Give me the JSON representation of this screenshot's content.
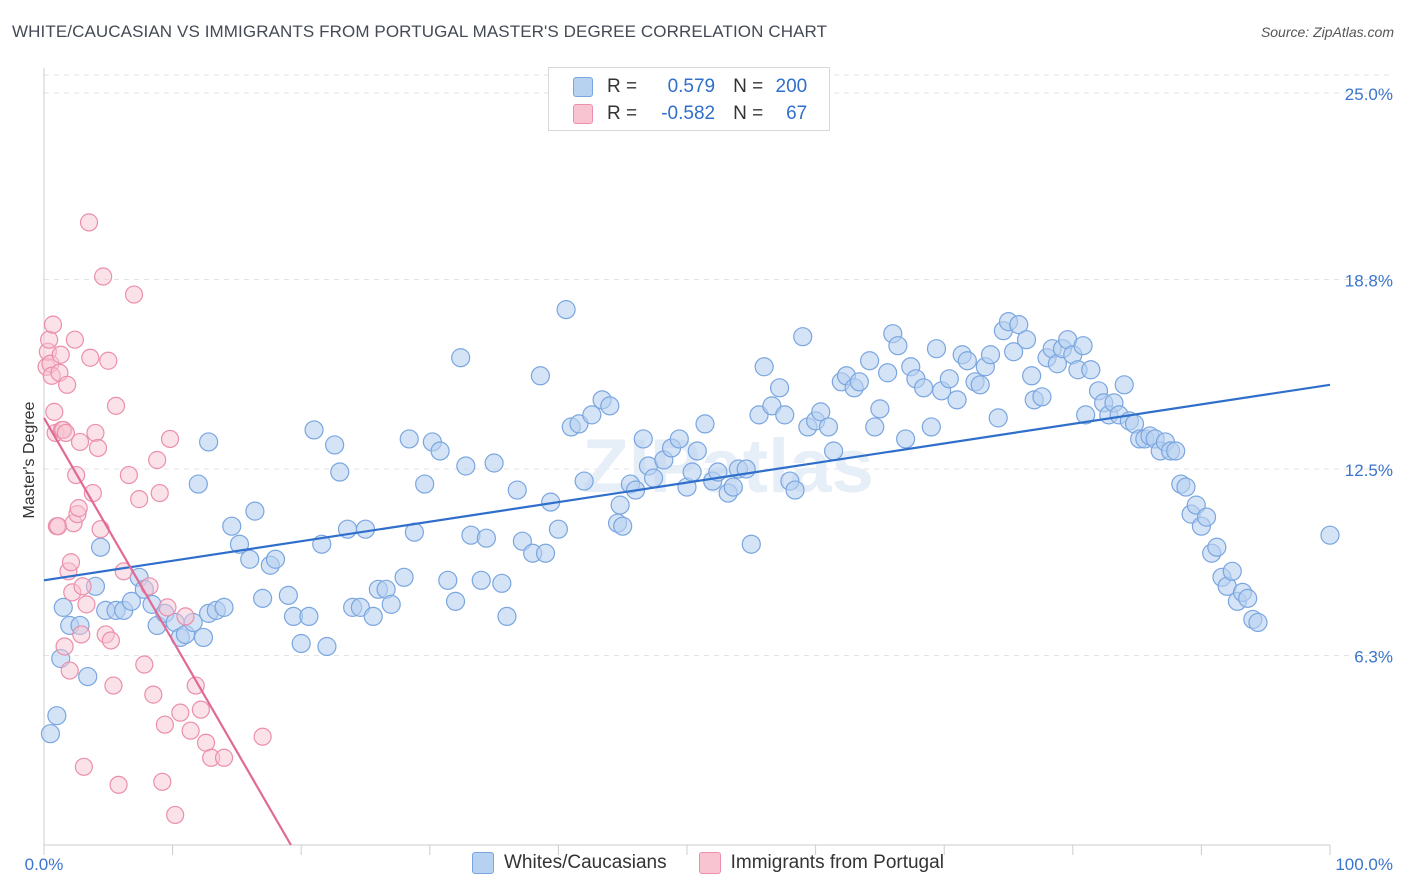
{
  "title": "WHITE/CAUCASIAN VS IMMIGRANTS FROM PORTUGAL MASTER'S DEGREE CORRELATION CHART",
  "source": "Source: ZipAtlas.com",
  "watermark": "ZIPatlas",
  "legend": {
    "r_label": "R =",
    "n_label": "N =",
    "rows": [
      {
        "r": "0.579",
        "n": "200"
      },
      {
        "r": "-0.582",
        "n": "67"
      }
    ]
  },
  "series_labels": [
    "Whites/Caucasians",
    "Immigrants from Portugal"
  ],
  "colors": {
    "blue_fill": "#b7d1f0",
    "blue_stroke": "#7aa6e0",
    "blue_line": "#2f6fcb",
    "pink_fill": "#f8c4d2",
    "pink_stroke": "#eb8fab",
    "pink_line": "#e06a95",
    "axis_label": "#3a74cc",
    "grid": "#e3e3e3"
  },
  "chart_data": {
    "type": "scatter",
    "title": "WHITE/CAUCASIAN VS IMMIGRANTS FROM PORTUGAL MASTER'S DEGREE CORRELATION CHART",
    "xlabel": "",
    "ylabel": "Master's Degree",
    "x_tick_labels": [
      "0.0%",
      "100.0%"
    ],
    "y_tick_labels": [
      "6.3%",
      "12.5%",
      "18.8%",
      "25.0%"
    ],
    "y_ticks": [
      6.3,
      12.5,
      18.8,
      25.0
    ],
    "xlim": [
      0,
      100
    ],
    "ylim": [
      0,
      25.6
    ],
    "grid": true,
    "legend_position": "top-center",
    "series": [
      {
        "name": "Whites/Caucasians",
        "r": 0.579,
        "n": 200,
        "trend": [
          [
            0,
            8.8
          ],
          [
            100,
            15.3
          ]
        ],
        "points": [
          [
            0.5,
            3.7
          ],
          [
            1,
            4.3
          ],
          [
            1.3,
            6.2
          ],
          [
            1.5,
            7.9
          ],
          [
            2,
            7.3
          ],
          [
            2.8,
            7.3
          ],
          [
            3.4,
            5.6
          ],
          [
            4,
            8.6
          ],
          [
            4.4,
            9.9
          ],
          [
            4.8,
            7.8
          ],
          [
            5.6,
            7.8
          ],
          [
            6.2,
            7.8
          ],
          [
            6.8,
            8.1
          ],
          [
            7.4,
            8.9
          ],
          [
            7.8,
            8.5
          ],
          [
            8.4,
            8
          ],
          [
            8.8,
            7.3
          ],
          [
            9.4,
            7.7
          ],
          [
            10.2,
            7.4
          ],
          [
            10.6,
            6.9
          ],
          [
            11,
            7
          ],
          [
            11.6,
            7.4
          ],
          [
            12,
            12
          ],
          [
            12.4,
            6.9
          ],
          [
            12.8,
            13.4
          ],
          [
            12.8,
            7.7
          ],
          [
            13.4,
            7.8
          ],
          [
            14,
            7.9
          ],
          [
            14.6,
            10.6
          ],
          [
            15.2,
            10
          ],
          [
            16,
            9.5
          ],
          [
            16.4,
            11.1
          ],
          [
            17,
            8.2
          ],
          [
            17.6,
            9.3
          ],
          [
            18,
            9.5
          ],
          [
            19,
            8.3
          ],
          [
            19.4,
            7.6
          ],
          [
            20,
            6.7
          ],
          [
            20.6,
            7.6
          ],
          [
            21,
            13.8
          ],
          [
            21.6,
            10
          ],
          [
            22,
            6.6
          ],
          [
            22.6,
            13.3
          ],
          [
            23,
            12.4
          ],
          [
            23.6,
            10.5
          ],
          [
            24,
            7.9
          ],
          [
            24.6,
            7.9
          ],
          [
            25,
            10.5
          ],
          [
            25.6,
            7.6
          ],
          [
            26,
            8.5
          ],
          [
            26.6,
            8.5
          ],
          [
            27,
            8
          ],
          [
            28,
            8.9
          ],
          [
            28.4,
            13.5
          ],
          [
            28.8,
            10.4
          ],
          [
            29.6,
            12
          ],
          [
            30.2,
            13.4
          ],
          [
            30.8,
            13.1
          ],
          [
            31.4,
            8.8
          ],
          [
            32,
            8.1
          ],
          [
            32.4,
            16.2
          ],
          [
            32.8,
            12.6
          ],
          [
            33.2,
            10.3
          ],
          [
            34,
            8.8
          ],
          [
            34.4,
            10.2
          ],
          [
            35,
            12.7
          ],
          [
            35.6,
            8.7
          ],
          [
            36,
            7.6
          ],
          [
            36.8,
            11.8
          ],
          [
            37.2,
            10.1
          ],
          [
            38,
            9.7
          ],
          [
            38.6,
            15.6
          ],
          [
            39,
            9.7
          ],
          [
            39.4,
            11.4
          ],
          [
            40,
            10.5
          ],
          [
            40.6,
            17.8
          ],
          [
            41,
            13.9
          ],
          [
            41.6,
            14
          ],
          [
            42,
            12.1
          ],
          [
            42.6,
            14.3
          ],
          [
            43.4,
            14.8
          ],
          [
            44,
            14.6
          ],
          [
            44.6,
            10.7
          ],
          [
            44.8,
            11.3
          ],
          [
            45,
            10.6
          ],
          [
            45.6,
            12
          ],
          [
            46,
            11.8
          ],
          [
            46.6,
            13.5
          ],
          [
            47,
            12.6
          ],
          [
            47.4,
            12.2
          ],
          [
            48.2,
            12.8
          ],
          [
            48.8,
            13.2
          ],
          [
            49.4,
            13.5
          ],
          [
            50,
            11.9
          ],
          [
            50.4,
            12.4
          ],
          [
            50.8,
            13.1
          ],
          [
            51.4,
            14
          ],
          [
            52,
            12.1
          ],
          [
            52.4,
            12.4
          ],
          [
            53.2,
            11.7
          ],
          [
            53.6,
            11.9
          ],
          [
            54,
            12.5
          ],
          [
            54.6,
            12.5
          ],
          [
            55,
            10
          ],
          [
            55.6,
            14.3
          ],
          [
            56,
            15.9
          ],
          [
            56.6,
            14.6
          ],
          [
            57.2,
            15.2
          ],
          [
            57.6,
            14.3
          ],
          [
            58,
            12.1
          ],
          [
            58.4,
            11.8
          ],
          [
            59,
            16.9
          ],
          [
            59.4,
            13.9
          ],
          [
            60,
            14.1
          ],
          [
            60.4,
            14.4
          ],
          [
            61,
            13.9
          ],
          [
            61.4,
            13.1
          ],
          [
            62,
            15.4
          ],
          [
            62.4,
            15.6
          ],
          [
            63,
            15.2
          ],
          [
            63.4,
            15.4
          ],
          [
            64.2,
            16.1
          ],
          [
            64.6,
            13.9
          ],
          [
            65,
            14.5
          ],
          [
            65.6,
            15.7
          ],
          [
            66,
            17
          ],
          [
            66.4,
            16.6
          ],
          [
            67,
            13.5
          ],
          [
            67.4,
            15.9
          ],
          [
            67.8,
            15.5
          ],
          [
            68.4,
            15.2
          ],
          [
            69,
            13.9
          ],
          [
            69.4,
            16.5
          ],
          [
            69.8,
            15.1
          ],
          [
            70.4,
            15.5
          ],
          [
            71,
            14.8
          ],
          [
            71.4,
            16.3
          ],
          [
            71.8,
            16.1
          ],
          [
            72.4,
            15.4
          ],
          [
            72.8,
            15.3
          ],
          [
            73.2,
            15.9
          ],
          [
            73.6,
            16.3
          ],
          [
            74.2,
            14.2
          ],
          [
            74.6,
            17.1
          ],
          [
            75,
            17.4
          ],
          [
            75.4,
            16.4
          ],
          [
            75.8,
            17.3
          ],
          [
            76.4,
            16.8
          ],
          [
            76.8,
            15.6
          ],
          [
            77,
            14.8
          ],
          [
            77.6,
            14.9
          ],
          [
            78,
            16.2
          ],
          [
            78.4,
            16.5
          ],
          [
            78.8,
            16
          ],
          [
            79.2,
            16.5
          ],
          [
            79.6,
            16.8
          ],
          [
            80,
            16.3
          ],
          [
            80.4,
            15.8
          ],
          [
            80.8,
            16.6
          ],
          [
            81,
            14.3
          ],
          [
            81.4,
            15.8
          ],
          [
            82,
            15.1
          ],
          [
            82.4,
            14.7
          ],
          [
            82.8,
            14.3
          ],
          [
            83.2,
            14.7
          ],
          [
            83.6,
            14.3
          ],
          [
            84,
            15.3
          ],
          [
            84.4,
            14.1
          ],
          [
            84.8,
            14
          ],
          [
            85.2,
            13.5
          ],
          [
            85.6,
            13.5
          ],
          [
            86,
            13.6
          ],
          [
            86.4,
            13.5
          ],
          [
            86.8,
            13.1
          ],
          [
            87.2,
            13.4
          ],
          [
            87.6,
            13.1
          ],
          [
            88,
            13.1
          ],
          [
            88.4,
            12
          ],
          [
            88.8,
            11.9
          ],
          [
            89.2,
            11
          ],
          [
            89.6,
            11.3
          ],
          [
            90,
            10.6
          ],
          [
            90.4,
            10.9
          ],
          [
            90.8,
            9.7
          ],
          [
            91.2,
            9.9
          ],
          [
            91.6,
            8.9
          ],
          [
            92,
            8.6
          ],
          [
            92.4,
            9.1
          ],
          [
            92.8,
            8.1
          ],
          [
            93.2,
            8.4
          ],
          [
            93.6,
            8.2
          ],
          [
            94,
            7.5
          ],
          [
            94.4,
            7.4
          ],
          [
            100,
            10.3
          ]
        ]
      },
      {
        "name": "Immigrants from Portugal",
        "r": -0.582,
        "n": 67,
        "trend": [
          [
            0,
            14.2
          ],
          [
            19.2,
            0
          ]
        ],
        "points": [
          [
            0.2,
            15.9
          ],
          [
            0.3,
            16.4
          ],
          [
            0.4,
            16.8
          ],
          [
            0.5,
            16
          ],
          [
            0.6,
            15.6
          ],
          [
            0.7,
            17.3
          ],
          [
            0.8,
            14.4
          ],
          [
            0.9,
            13.7
          ],
          [
            1,
            10.6
          ],
          [
            1.1,
            10.6
          ],
          [
            1.2,
            15.7
          ],
          [
            1.3,
            16.3
          ],
          [
            1.4,
            13.8
          ],
          [
            1.5,
            13.8
          ],
          [
            1.6,
            6.6
          ],
          [
            1.7,
            13.7
          ],
          [
            1.8,
            15.3
          ],
          [
            1.9,
            9.1
          ],
          [
            2,
            5.8
          ],
          [
            2.1,
            9.4
          ],
          [
            2.2,
            8.4
          ],
          [
            2.3,
            10.7
          ],
          [
            2.4,
            16.8
          ],
          [
            2.5,
            12.3
          ],
          [
            2.6,
            11
          ],
          [
            2.7,
            11.2
          ],
          [
            2.8,
            13.4
          ],
          [
            2.9,
            7
          ],
          [
            3,
            8.6
          ],
          [
            3.1,
            2.6
          ],
          [
            3.3,
            8
          ],
          [
            3.5,
            20.7
          ],
          [
            3.6,
            16.2
          ],
          [
            3.8,
            11.7
          ],
          [
            4,
            13.7
          ],
          [
            4.2,
            13.2
          ],
          [
            4.4,
            10.5
          ],
          [
            4.6,
            18.9
          ],
          [
            4.8,
            7
          ],
          [
            5,
            16.1
          ],
          [
            5.2,
            6.8
          ],
          [
            5.4,
            5.3
          ],
          [
            5.6,
            14.6
          ],
          [
            5.8,
            2
          ],
          [
            6.2,
            9.1
          ],
          [
            6.6,
            12.3
          ],
          [
            7,
            18.3
          ],
          [
            7.4,
            11.5
          ],
          [
            7.8,
            6
          ],
          [
            8.2,
            8.6
          ],
          [
            8.5,
            5
          ],
          [
            8.8,
            12.8
          ],
          [
            9,
            11.7
          ],
          [
            9.2,
            2.1
          ],
          [
            9.4,
            4
          ],
          [
            9.6,
            7.9
          ],
          [
            9.8,
            13.5
          ],
          [
            10.2,
            1
          ],
          [
            10.6,
            4.4
          ],
          [
            11,
            7.6
          ],
          [
            11.4,
            3.8
          ],
          [
            11.8,
            5.3
          ],
          [
            12.2,
            4.5
          ],
          [
            12.6,
            3.4
          ],
          [
            13,
            2.9
          ],
          [
            14,
            2.9
          ],
          [
            17,
            3.6
          ]
        ]
      }
    ]
  }
}
